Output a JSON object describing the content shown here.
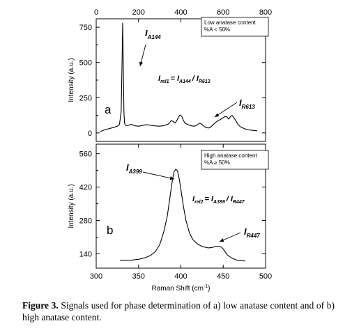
{
  "chart_data": [
    {
      "type": "line",
      "panel_label": "a",
      "x_axis": "top",
      "xlim": [
        0,
        800
      ],
      "xticks": [
        "0",
        "200",
        "400",
        "600",
        "800"
      ],
      "ylim": [
        -60,
        810
      ],
      "yticks": [
        "0",
        "250",
        "500",
        "750"
      ],
      "ylabel": "Intensity (a.u.)",
      "legend_lines": [
        "Low anatase content",
        "%A < 50%"
      ],
      "legend_placement": "top-right",
      "x": [
        20,
        40,
        60,
        80,
        100,
        110,
        118,
        122,
        125,
        128,
        131,
        134,
        138,
        145,
        155,
        165,
        175,
        185,
        200,
        215,
        235,
        255,
        275,
        300,
        320,
        340,
        355,
        365,
        372,
        380,
        388,
        396,
        404,
        412,
        420,
        430,
        440,
        450,
        460,
        470,
        480,
        490,
        500,
        510,
        520,
        530,
        540,
        550,
        560,
        570,
        580,
        590,
        600,
        610,
        618,
        626,
        634,
        642,
        650,
        660,
        670,
        680,
        700,
        720,
        740,
        760
      ],
      "y": [
        10,
        22,
        30,
        38,
        48,
        60,
        150,
        500,
        780,
        470,
        150,
        70,
        55,
        52,
        55,
        60,
        55,
        50,
        48,
        52,
        58,
        55,
        50,
        48,
        52,
        62,
        88,
        80,
        70,
        85,
        110,
        128,
        118,
        90,
        68,
        62,
        55,
        50,
        48,
        50,
        60,
        70,
        60,
        45,
        38,
        35,
        40,
        55,
        70,
        82,
        90,
        98,
        108,
        118,
        112,
        98,
        115,
        125,
        110,
        85,
        60,
        45,
        30,
        22,
        18,
        15
      ],
      "annotations": [
        {
          "main": "I",
          "sub": "A144",
          "x": 140,
          "y": 440,
          "ref": "I",
          "size": "big"
        },
        {
          "main": "I",
          "sub": "R613",
          "x": 620,
          "y": 120,
          "ref": "I",
          "size": "big"
        }
      ],
      "formula": {
        "a": "I",
        "a_sub": "rel1",
        "b": "= I",
        "b_sub": "A144",
        "c": "/ I",
        "c_sub": "R613"
      }
    },
    {
      "type": "line",
      "panel_label": "b",
      "x_axis": "bottom",
      "xlim": [
        300,
        500
      ],
      "xticks": [
        "300",
        "350",
        "400",
        "450",
        "500"
      ],
      "ylim": [
        80,
        600
      ],
      "yticks": [
        "140",
        "280",
        "420",
        "560"
      ],
      "xlabel": "Raman Shift (cm",
      "xlabel_sup": "-1",
      "xlabel_end": ")",
      "ylabel": "Intensity (a.u.)",
      "legend_lines": [
        "High anatase content",
        "%A ≥ 50%"
      ],
      "legend_placement": "top-right",
      "x": [
        328,
        335,
        342,
        350,
        358,
        364,
        370,
        375,
        380,
        384,
        388,
        390,
        392,
        394,
        396,
        398,
        400,
        403,
        406,
        410,
        414,
        420,
        426,
        432,
        436,
        440,
        443,
        446,
        448,
        450,
        452,
        455,
        460,
        466,
        472,
        476
      ],
      "y": [
        112,
        113,
        114,
        117,
        124,
        133,
        150,
        178,
        235,
        300,
        400,
        450,
        485,
        495,
        488,
        455,
        410,
        340,
        280,
        230,
        200,
        180,
        170,
        165,
        166,
        170,
        172,
        170,
        168,
        160,
        150,
        135,
        122,
        114,
        111,
        110
      ],
      "annotations": [
        {
          "main": "I",
          "sub": "A399",
          "x": 382,
          "y": 488,
          "ref": "I",
          "size": "big"
        },
        {
          "main": "I",
          "sub": "R447",
          "x": 455,
          "y": 208,
          "ref": "I",
          "size": "big"
        }
      ],
      "formula": {
        "a": "I",
        "a_sub": "rel2",
        "b": "= I",
        "b_sub": "A399",
        "c": "/ I",
        "c_sub": "R447"
      }
    }
  ],
  "caption": {
    "bold": "Figure 3.",
    "text": " Signals used for phase determination of a) low anatase content and of b) high anatase content."
  }
}
